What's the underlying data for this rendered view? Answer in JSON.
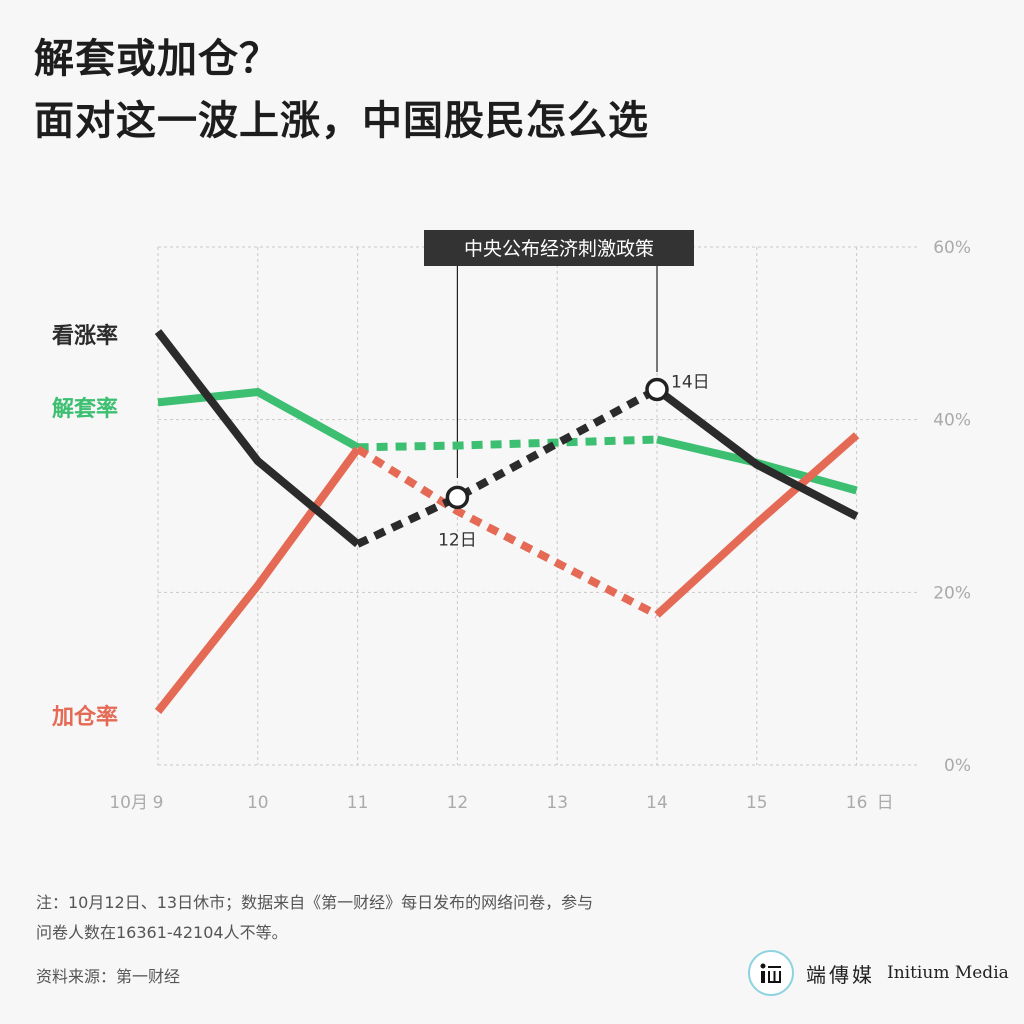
{
  "title": {
    "line1": "解套或加仓？",
    "line2": "面对这一波上涨，中国股民怎么选"
  },
  "annotation": {
    "label": "中央公布经济刺激政策",
    "point12_label": "12日",
    "point14_label": "14日"
  },
  "chart_data": {
    "type": "line",
    "x_prefix": "10月",
    "x_unit": "日",
    "x": [
      9,
      10,
      11,
      12,
      13,
      14,
      15,
      16
    ],
    "y_ticks": [
      "0%",
      "20%",
      "40%",
      "60%"
    ],
    "ylim": [
      0,
      60
    ],
    "series": [
      {
        "name": "看涨率",
        "color": "#2b2b2b",
        "points": [
          [
            9,
            50.2
          ],
          [
            10,
            35.2
          ],
          [
            11,
            25.6
          ],
          [
            12,
            31
          ],
          [
            14,
            43.5
          ],
          [
            15,
            34.8
          ],
          [
            16,
            28.8
          ]
        ],
        "dashed_segments": [
          [
            11,
            14
          ]
        ]
      },
      {
        "name": "解套率",
        "color": "#3dbf72",
        "points": [
          [
            9,
            42
          ],
          [
            10,
            43.2
          ],
          [
            11,
            36.8
          ],
          [
            12,
            37
          ],
          [
            14,
            37.7
          ],
          [
            15,
            35
          ],
          [
            16,
            31.8
          ]
        ],
        "dashed_segments": [
          [
            11,
            14
          ]
        ]
      },
      {
        "name": "加仓率",
        "color": "#e56a55",
        "points": [
          [
            9,
            6.2
          ],
          [
            10,
            20.8
          ],
          [
            11,
            36.6
          ],
          [
            12,
            29.4
          ],
          [
            14,
            17.4
          ],
          [
            15,
            28
          ],
          [
            16,
            38.2
          ]
        ],
        "dashed_segments": [
          [
            11,
            14
          ]
        ]
      }
    ]
  },
  "footnote": {
    "line1": "注：10月12日、13日休市；数据来自《第一财经》每日发布的网络问卷，参与",
    "line2": "问卷人数在16361-42104人不等。"
  },
  "source": "资料来源：第一财经",
  "brand": {
    "cn": "端傳媒",
    "en": "Initium Media",
    "logo_color": "#8fd3e0"
  }
}
